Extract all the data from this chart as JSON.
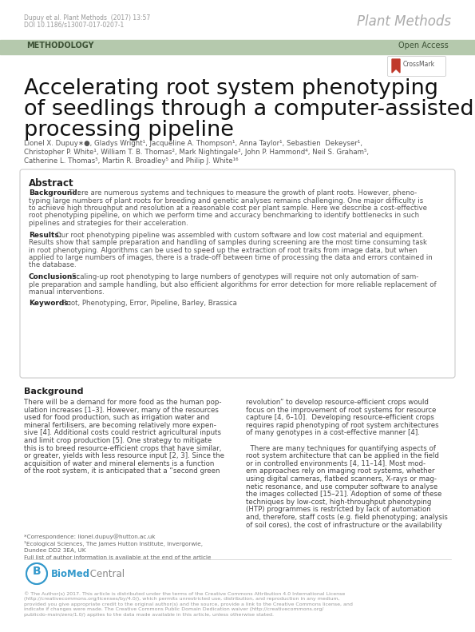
{
  "bg_color": "#ffffff",
  "header_bg": "#b5c9ad",
  "header_text": "METHODOLOGY",
  "header_right": "Open Access",
  "journal_name": "Plant Methods",
  "citation_line1": "Dupuy et al. Plant Methods  (2017) 13:57",
  "citation_line2": "DOI 10.1186/s13007-017-0207-1",
  "paper_title_line1": "Accelerating root system phenotyping",
  "paper_title_line2": "of seedlings through a computer-assisted",
  "paper_title_line3": "processing pipeline",
  "authors_line1": "Lionel X. Dupuy∗●, Gladys Wright¹, Jacqueline A. Thompson¹, Anna Taylor¹, Sebastien  Dekeyser¹,",
  "authors_line2": "Christopher P. White¹, William T. B. Thomas², Mark Nightingale³, John P. Hammond⁴, Neil S. Graham⁵,",
  "authors_line3": "Catherine L. Thomas⁵, Martin R. Broadley⁵ and Philip J. White¹⁶",
  "abstract_bg_line1": "There are numerous systems and techniques to measure the growth of plant roots. However, pheno-",
  "abstract_bg_line2": "typing large numbers of plant roots for breeding and genetic analyses remains challenging. One major difficulty is",
  "abstract_bg_line3": "to achieve high throughput and resolution at a reasonable cost per plant sample. Here we describe a cost-effective",
  "abstract_bg_line4": "root phenotyping pipeline, on which we perform time and accuracy benchmarking to identify bottlenecks in such",
  "abstract_bg_line5": "pipelines and strategies for their acceleration.",
  "abstract_res_line1": "Our root phenotyping pipeline was assembled with custom software and low cost material and equipment.",
  "abstract_res_line2": "Results show that sample preparation and handling of samples during screening are the most time consuming task",
  "abstract_res_line3": "in root phenotyping. Algorithms can be used to speed up the extraction of root traits from image data, but when",
  "abstract_res_line4": "applied to large numbers of images, there is a trade-off between time of processing the data and errors contained in",
  "abstract_res_line5": "the database.",
  "abstract_conc_line1": "Scaling-up root phenotyping to large numbers of genotypes will require not only automation of sam-",
  "abstract_conc_line2": "ple preparation and sample handling, but also efficient algorithms for error detection for more reliable replacement of",
  "abstract_conc_line3": "manual interventions.",
  "keywords_text": "Root, Phenotyping, Error, Pipeline, Barley, Brassica",
  "col1_lines": [
    "There will be a demand for more food as the human pop-",
    "ulation increases [1–3]. However, many of the resources",
    "used for food production, such as irrigation water and",
    "mineral fertilisers, are becoming relatively more expen-",
    "sive [4]. Additional costs could restrict agricultural inputs",
    "and limit crop production [5]. One strategy to mitigate",
    "this is to breed resource-efficient crops that have similar,",
    "or greater, yields with less resource input [2, 3]. Since the",
    "acquisition of water and mineral elements is a function",
    "of the root system, it is anticipated that a “second green"
  ],
  "col2_lines": [
    "revolution” to develop resource-efficient crops would",
    "focus on the improvement of root systems for resource",
    "capture [4, 6–10].  Developing resource-efficient crops",
    "requires rapid phenotyping of root system architectures",
    "of many genotypes in a cost-effective manner [4].",
    "",
    "  There are many techniques for quantifying aspects of",
    "root system architecture that can be applied in the field",
    "or in controlled environments [4, 11–14]. Most mod-",
    "ern approaches rely on imaging root systems, whether",
    "using digital cameras, flatbed scanners, X-rays or mag-",
    "netic resonance, and use computer software to analyse",
    "the images collected [15–21]. Adoption of some of these",
    "techniques by low-cost, high-throughput phenotyping",
    "(HTP) programmes is restricted by lack of automation",
    "and, therefore, staff costs (e.g. field phenotyping; analysis",
    "of soil cores), the cost of infrastructure or the availability"
  ],
  "footer_note_lines": [
    "*Correspondence: lionel.dupuy@hutton.ac.uk",
    "¹Ecological Sciences, The James Hutton Institute, Invergorwie,",
    "Dundee DD2 3EA, UK",
    "Full list of author information is available at the end of the article"
  ],
  "footer_copyright": "© The Author(s) 2017. This article is distributed under the terms of the Creative Commons Attribution 4.0 International License\n(http://creativecommons.org/licenses/by/4.0/), which permits unrestricted use, distribution, and reproduction in any medium,\nprovided you give appropriate credit to the original author(s) and the source, provide a link to the Creative Commons license, and\nindicate if changes were made. The Creative Commons Public Domain Dedication waiver (http://creativecommons.org/\npublicdo-main/zero/1.0/) applies to the data made available in this article, unless otherwise stated.",
  "biomed_text": "BioMed Central"
}
